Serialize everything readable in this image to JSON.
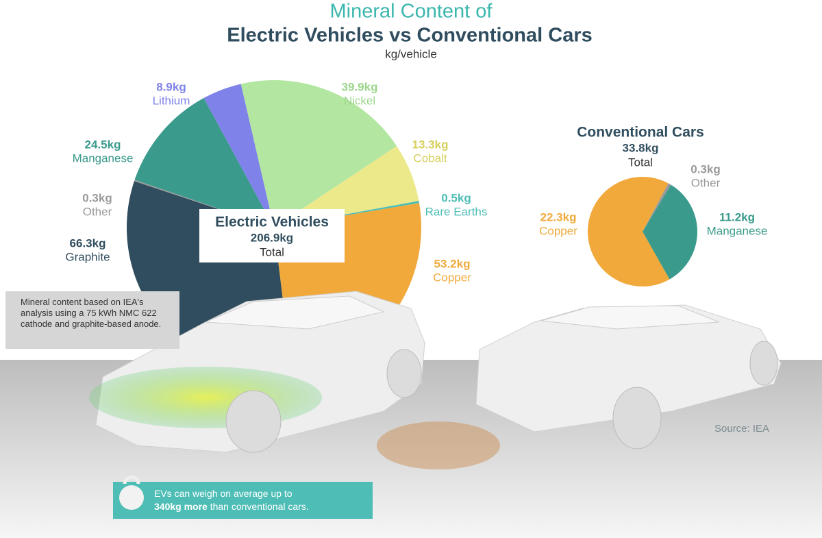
{
  "title": "Mineral Content of",
  "subtitle": "Electric Vehicles vs Conventional Cars",
  "unit": "kg/vehicle",
  "note": "Mineral content based on IEA's analysis using a 75 kWh NMC 622 cathode and graphite-based anode.",
  "source": "Source: IEA",
  "callout": [
    "EVs can weigh on average up to",
    "340kg more",
    "than conventional cars."
  ],
  "chart_data": [
    {
      "type": "pie",
      "title": "Electric Vehicles",
      "total": {
        "value": 206.9,
        "label": "206.9kg"
      },
      "total_caption": "Total",
      "categories": [
        "Nickel",
        "Cobalt",
        "Rare Earths",
        "Copper",
        "Graphite",
        "Other",
        "Manganese",
        "Lithium"
      ],
      "values": [
        39.9,
        13.3,
        0.5,
        53.2,
        66.3,
        0.3,
        24.5,
        8.9
      ],
      "value_labels": [
        "39.9kg",
        "13.3kg",
        "0.5kg",
        "53.2kg",
        "66.3kg",
        "0.3kg",
        "24.5kg",
        "8.9kg"
      ],
      "colors": [
        "#b3e6a0",
        "#ece98a",
        "#4dbdb5",
        "#f0a93a",
        "#2f4d5e",
        "#9a9a9a",
        "#3a9a8b",
        "#7f82e8"
      ]
    },
    {
      "type": "pie",
      "title": "Conventional Cars",
      "total": {
        "value": 33.8,
        "label": "33.8kg"
      },
      "total_caption": "Total",
      "categories": [
        "Other",
        "Manganese",
        "Copper"
      ],
      "values": [
        0.3,
        11.2,
        22.3
      ],
      "value_labels": [
        "0.3kg",
        "11.2kg",
        "22.3kg"
      ],
      "colors": [
        "#9a9a9a",
        "#3a9a8b",
        "#f0a93a"
      ]
    }
  ]
}
